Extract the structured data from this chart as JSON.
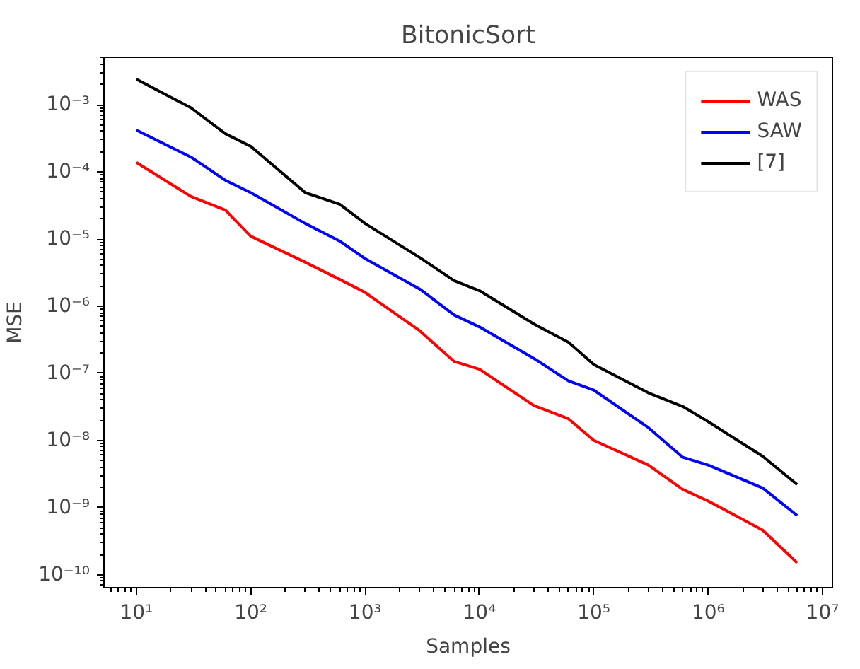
{
  "chart_data": {
    "type": "line",
    "title": "BitonicSort",
    "xlabel": "Samples",
    "ylabel": "MSE",
    "x": [
      10,
      30,
      60,
      100,
      300,
      600,
      1000,
      3000,
      6000,
      10000,
      30000,
      60000,
      100000,
      300000,
      600000,
      1000000,
      3000000,
      6000000
    ],
    "series": [
      {
        "name": "WAS",
        "color": "#ff0000",
        "values": [
          0.000138,
          4.3e-05,
          2.7e-05,
          1.1e-05,
          4.5e-06,
          2.5e-06,
          1.6e-06,
          4.3e-07,
          1.5e-07,
          1.15e-07,
          3.3e-08,
          2.1e-08,
          1e-08,
          4.3e-09,
          1.86e-09,
          1.25e-09,
          4.6e-10,
          1.5e-10
        ]
      },
      {
        "name": "SAW",
        "color": "#0000ff",
        "values": [
          0.00042,
          0.000166,
          7.5e-05,
          4.9e-05,
          1.7e-05,
          9.3e-06,
          5.1e-06,
          1.8e-06,
          7.4e-07,
          4.9e-07,
          1.66e-07,
          7.7e-08,
          5.6e-08,
          1.55e-08,
          5.6e-09,
          4.3e-09,
          1.95e-09,
          7.6e-10
        ]
      },
      {
        "name": "[7]",
        "color": "#000000",
        "values": [
          0.0024,
          0.0009,
          0.00037,
          0.00024,
          4.9e-05,
          3.3e-05,
          1.7e-05,
          5.3e-06,
          2.4e-06,
          1.7e-06,
          5.4e-07,
          2.9e-07,
          1.35e-07,
          5.1e-08,
          3.2e-08,
          1.9e-08,
          5.8e-09,
          2.2e-09
        ]
      }
    ],
    "log": "xy",
    "xlim": [
      5.2,
      12200000.0
    ],
    "ylim": [
      6.4e-11,
      0.0051
    ],
    "xticks": [
      {
        "value": 10,
        "label": "10¹"
      },
      {
        "value": 100,
        "label": "10²"
      },
      {
        "value": 1000,
        "label": "10³"
      },
      {
        "value": 10000,
        "label": "10⁴"
      },
      {
        "value": 100000,
        "label": "10⁵"
      },
      {
        "value": 1000000,
        "label": "10⁶"
      },
      {
        "value": 10000000,
        "label": "10⁷"
      }
    ],
    "yticks": [
      {
        "value": 1e-10,
        "label": "10⁻¹⁰"
      },
      {
        "value": 1e-09,
        "label": "10⁻⁹"
      },
      {
        "value": 1e-08,
        "label": "10⁻⁸"
      },
      {
        "value": 1e-07,
        "label": "10⁻⁷"
      },
      {
        "value": 1e-06,
        "label": "10⁻⁶"
      },
      {
        "value": 1e-05,
        "label": "10⁻⁵"
      },
      {
        "value": 0.0001,
        "label": "10⁻⁴"
      },
      {
        "value": 0.001,
        "label": "10⁻³"
      }
    ],
    "grid": false,
    "legend": "top right",
    "marker": "none",
    "line_style": "solid"
  }
}
